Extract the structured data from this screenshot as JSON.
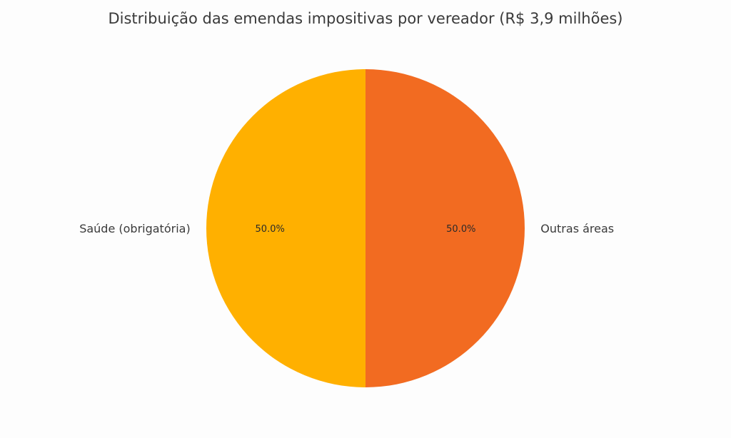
{
  "chart_data": {
    "type": "pie",
    "title": "Distribuição das emendas impositivas por vereador (R$ 3,9 milhões)",
    "slices": [
      {
        "label": "Outras áreas",
        "value": 50.0,
        "pct_label": "50.0%",
        "color": "#f26b21"
      },
      {
        "label": "Saúde (obrigatória)",
        "value": 50.0,
        "pct_label": "50.0%",
        "color": "#ffb000"
      }
    ],
    "start_angle_deg": 90,
    "direction": "clockwise"
  }
}
